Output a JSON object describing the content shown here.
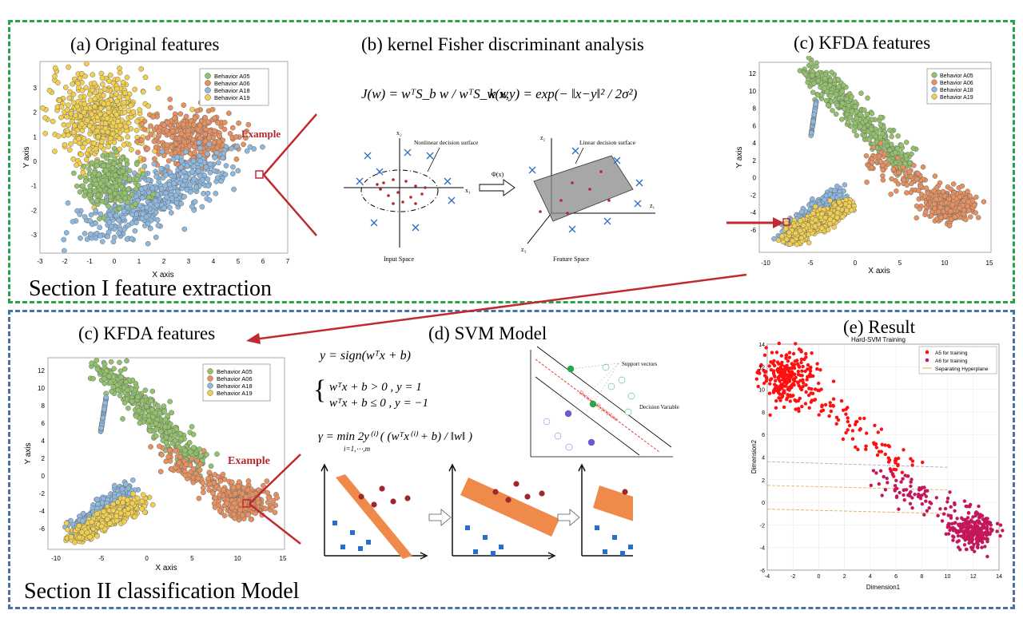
{
  "colors": {
    "a05": "#93c26a",
    "a06": "#e8915f",
    "a18": "#8db8df",
    "a19": "#f2cf4d",
    "section1_border": "#2aa14a",
    "section2_border": "#4b73a0",
    "arrow": "#c0292f",
    "svm_a5": "#ff1010",
    "svm_a6": "#c2185b"
  },
  "section1": {
    "label": "Section I feature extraction",
    "panel_a": {
      "title": "(a) Original features",
      "x_label": "X axis",
      "y_label": "Y axis",
      "x_ticks": [
        "-3",
        "-2",
        "-1",
        "0",
        "1",
        "2",
        "3",
        "4",
        "5",
        "6",
        "7"
      ],
      "y_ticks": [
        "3",
        "2",
        "1",
        "0",
        "-1",
        "-2",
        "-3"
      ],
      "legend": [
        "Behavior A05",
        "Behavior A06",
        "Behavior A18",
        "Behavior A19"
      ],
      "annotation": "Example"
    },
    "panel_b": {
      "title": "(b) kernel Fisher discriminant analysis",
      "eq_left": "J(w) = wᵀS_b w / wᵀS_w w",
      "eq_right": "k(x,y) = exp(− ‖x−y‖² / 2σ²)",
      "input_space_label": "Input Space",
      "feature_space_label": "Feature Space",
      "nonlinear_label": "Nonlinear decision surface",
      "linear_label": "Linear decision surface",
      "phi_label": "Φ(x)",
      "x1": "x₁",
      "x2": "x₂",
      "z1": "z₁",
      "z2": "z₂",
      "z3": "z₃"
    },
    "panel_c": {
      "title": "(c) KFDA features",
      "x_label": "X axis",
      "y_label": "Y axis",
      "x_ticks": [
        "-10",
        "-5",
        "0",
        "5",
        "10",
        "15"
      ],
      "y_ticks": [
        "12",
        "10",
        "8",
        "6",
        "4",
        "2",
        "0",
        "-2",
        "-4",
        "-6"
      ],
      "legend": [
        "Behavior A05",
        "Behavior A06",
        "Behavior A18",
        "Behavior A19"
      ]
    }
  },
  "section2": {
    "label": "Section II classification  Model",
    "panel_c": {
      "title": "(c) KFDA features",
      "x_label": "X axis",
      "y_label": "Y axis",
      "x_ticks": [
        "-10",
        "-5",
        "0",
        "5",
        "10",
        "15"
      ],
      "y_ticks": [
        "12",
        "10",
        "8",
        "6",
        "4",
        "2",
        "0",
        "-2",
        "-4",
        "-6"
      ],
      "legend": [
        "Behavior A05",
        "Behavior A06",
        "Behavior A18",
        "Behavior A19"
      ],
      "annotation": "Example"
    },
    "panel_d": {
      "title": "(d) SVM Model",
      "eq1": "y = sign(wᵀx + b)",
      "eq2a": "wᵀx + b > 0 , y = 1",
      "eq2b": "wᵀx + b ≤ 0 , y = −1",
      "eq3": "γ = min 2y⁽ⁱ⁾ ( (wᵀx⁽ⁱ⁾ + b) / ‖w‖ )",
      "eq3_sub": "i=1,⋯,m",
      "support_vectors": "Support vectors",
      "decision_variables": "Decision Variables",
      "decision_hyperplane": "Decision Hyperplane"
    },
    "panel_e": {
      "title": "(e) Result",
      "plot_title": "Hard-SVM Training",
      "x_label": "Dimension1",
      "y_label": "Dimension2",
      "x_ticks": [
        "-4",
        "-2",
        "0",
        "2",
        "4",
        "6",
        "8",
        "10",
        "12",
        "14"
      ],
      "y_ticks": [
        "14",
        "12",
        "10",
        "8",
        "6",
        "4",
        "2",
        "0",
        "-2",
        "-4",
        "-6"
      ],
      "legend": [
        "A5 for training",
        "A6 for training",
        "Separating Hyperplane"
      ]
    }
  }
}
